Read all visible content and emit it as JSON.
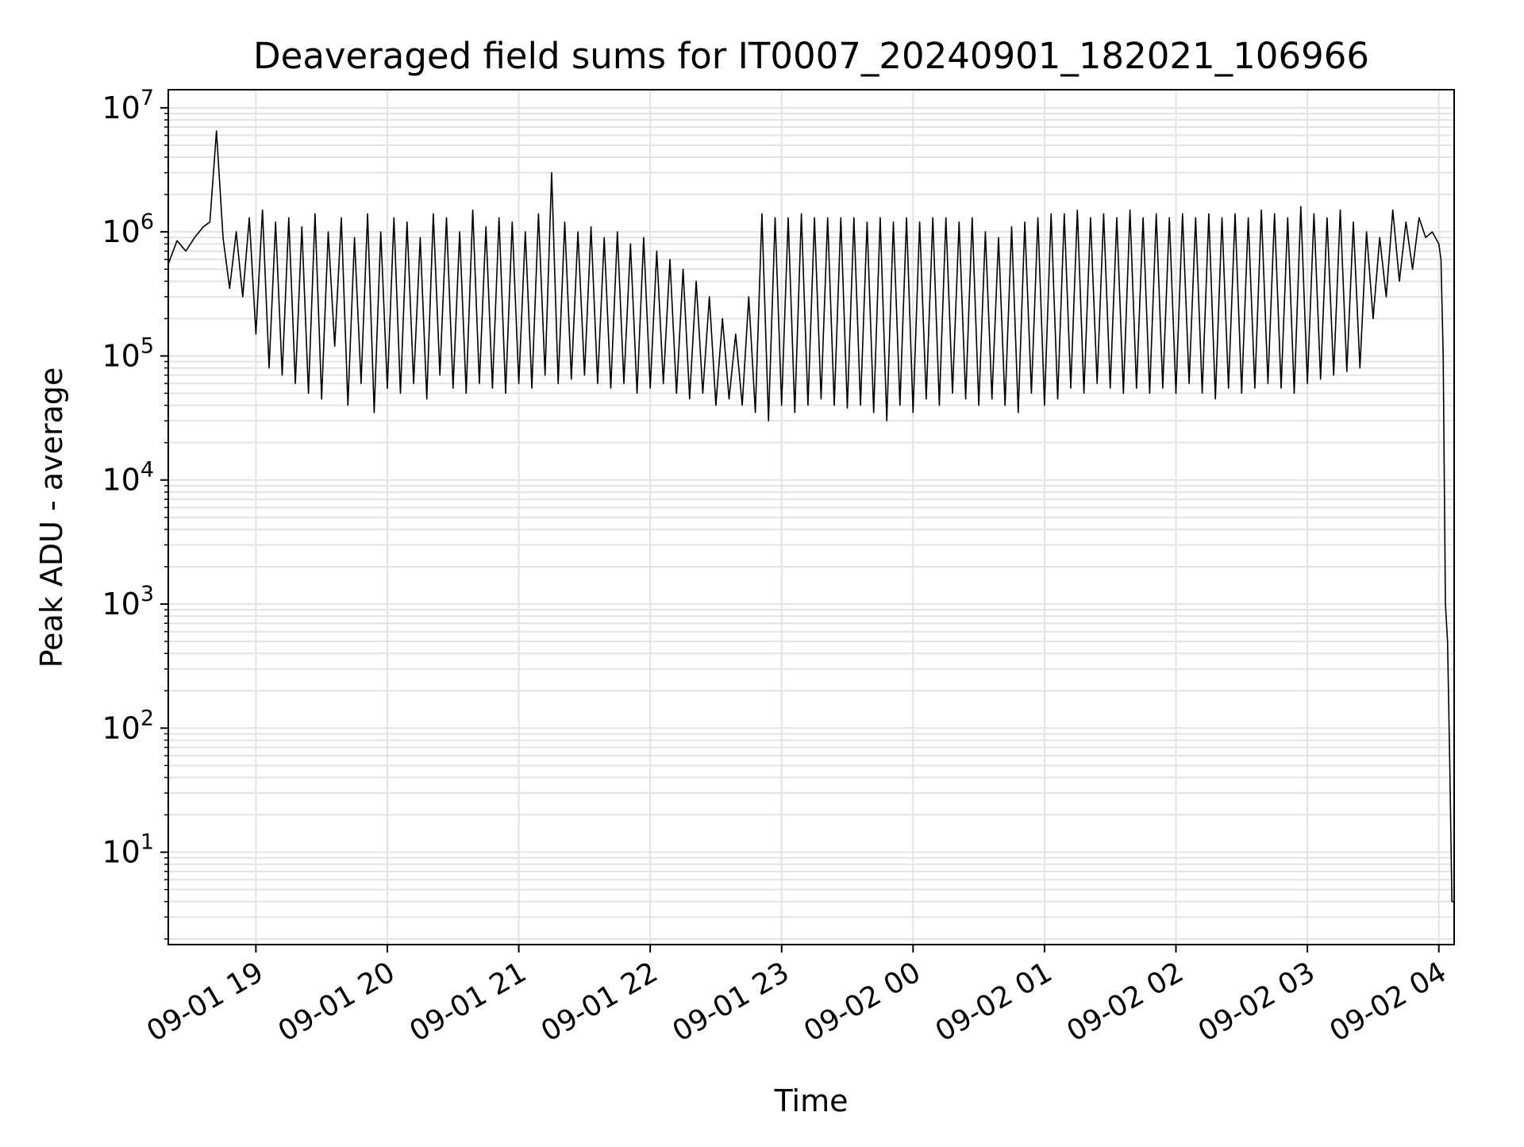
{
  "chart_data": {
    "type": "line",
    "title": "Deaveraged field sums for IT0007_20240901_182021_106966",
    "xlabel": "Time",
    "ylabel": "Peak ADU - average",
    "yscale": "log",
    "ylim": [
      1.8,
      14000000
    ],
    "xlim": [
      "2024-09-01 18:20",
      "2024-09-02 04:07"
    ],
    "grid": true,
    "legend": "none",
    "line_color": "#000000",
    "grid_color": "#e3e3e3",
    "x_ticks": [
      {
        "t": "2024-09-01 19:00",
        "label": "09-01 19"
      },
      {
        "t": "2024-09-01 20:00",
        "label": "09-01 20"
      },
      {
        "t": "2024-09-01 21:00",
        "label": "09-01 21"
      },
      {
        "t": "2024-09-01 22:00",
        "label": "09-01 22"
      },
      {
        "t": "2024-09-01 23:00",
        "label": "09-01 23"
      },
      {
        "t": "2024-09-02 00:00",
        "label": "09-02 00"
      },
      {
        "t": "2024-09-02 01:00",
        "label": "09-02 01"
      },
      {
        "t": "2024-09-02 02:00",
        "label": "09-02 02"
      },
      {
        "t": "2024-09-02 03:00",
        "label": "09-02 03"
      },
      {
        "t": "2024-09-02 04:00",
        "label": "09-02 04"
      }
    ],
    "y_ticks": [
      {
        "value": 10,
        "base": "10",
        "exp": "1"
      },
      {
        "value": 100,
        "base": "10",
        "exp": "2"
      },
      {
        "value": 1000,
        "base": "10",
        "exp": "3"
      },
      {
        "value": 10000,
        "base": "10",
        "exp": "4"
      },
      {
        "value": 100000,
        "base": "10",
        "exp": "5"
      },
      {
        "value": 1000000,
        "base": "10",
        "exp": "6"
      },
      {
        "value": 10000000,
        "base": "10",
        "exp": "7"
      }
    ],
    "series": [
      {
        "x": [
          "2024-09-01 18:20",
          "2024-09-01 18:24",
          "2024-09-01 18:28",
          "2024-09-01 18:32",
          "2024-09-01 18:36",
          "2024-09-01 18:39",
          "2024-09-01 18:42",
          "2024-09-01 18:45",
          "2024-09-01 18:48",
          "2024-09-01 18:51",
          "2024-09-01 18:54",
          "2024-09-01 18:57",
          "2024-09-01 19:00",
          "2024-09-01 19:03",
          "2024-09-01 19:06",
          "2024-09-01 19:09",
          "2024-09-01 19:12",
          "2024-09-01 19:15",
          "2024-09-01 19:18",
          "2024-09-01 19:21",
          "2024-09-01 19:24",
          "2024-09-01 19:27",
          "2024-09-01 19:30",
          "2024-09-01 19:33",
          "2024-09-01 19:36",
          "2024-09-01 19:39",
          "2024-09-01 19:42",
          "2024-09-01 19:45",
          "2024-09-01 19:48",
          "2024-09-01 19:51",
          "2024-09-01 19:54",
          "2024-09-01 19:57",
          "2024-09-01 20:00",
          "2024-09-01 20:03",
          "2024-09-01 20:06",
          "2024-09-01 20:09",
          "2024-09-01 20:12",
          "2024-09-01 20:15",
          "2024-09-01 20:18",
          "2024-09-01 20:21",
          "2024-09-01 20:24",
          "2024-09-01 20:27",
          "2024-09-01 20:30",
          "2024-09-01 20:33",
          "2024-09-01 20:36",
          "2024-09-01 20:39",
          "2024-09-01 20:42",
          "2024-09-01 20:45",
          "2024-09-01 20:48",
          "2024-09-01 20:51",
          "2024-09-01 20:54",
          "2024-09-01 20:57",
          "2024-09-01 21:00",
          "2024-09-01 21:03",
          "2024-09-01 21:06",
          "2024-09-01 21:09",
          "2024-09-01 21:12",
          "2024-09-01 21:15",
          "2024-09-01 21:18",
          "2024-09-01 21:21",
          "2024-09-01 21:24",
          "2024-09-01 21:27",
          "2024-09-01 21:30",
          "2024-09-01 21:33",
          "2024-09-01 21:36",
          "2024-09-01 21:39",
          "2024-09-01 21:42",
          "2024-09-01 21:45",
          "2024-09-01 21:48",
          "2024-09-01 21:51",
          "2024-09-01 21:54",
          "2024-09-01 21:57",
          "2024-09-01 22:00",
          "2024-09-01 22:03",
          "2024-09-01 22:06",
          "2024-09-01 22:09",
          "2024-09-01 22:12",
          "2024-09-01 22:15",
          "2024-09-01 22:18",
          "2024-09-01 22:21",
          "2024-09-01 22:24",
          "2024-09-01 22:27",
          "2024-09-01 22:30",
          "2024-09-01 22:33",
          "2024-09-01 22:36",
          "2024-09-01 22:39",
          "2024-09-01 22:42",
          "2024-09-01 22:45",
          "2024-09-01 22:48",
          "2024-09-01 22:51",
          "2024-09-01 22:54",
          "2024-09-01 22:57",
          "2024-09-01 23:00",
          "2024-09-01 23:03",
          "2024-09-01 23:06",
          "2024-09-01 23:09",
          "2024-09-01 23:12",
          "2024-09-01 23:15",
          "2024-09-01 23:18",
          "2024-09-01 23:21",
          "2024-09-01 23:24",
          "2024-09-01 23:27",
          "2024-09-01 23:30",
          "2024-09-01 23:33",
          "2024-09-01 23:36",
          "2024-09-01 23:39",
          "2024-09-01 23:42",
          "2024-09-01 23:45",
          "2024-09-01 23:48",
          "2024-09-01 23:51",
          "2024-09-01 23:54",
          "2024-09-01 23:57",
          "2024-09-02 00:00",
          "2024-09-02 00:03",
          "2024-09-02 00:06",
          "2024-09-02 00:09",
          "2024-09-02 00:12",
          "2024-09-02 00:15",
          "2024-09-02 00:18",
          "2024-09-02 00:21",
          "2024-09-02 00:24",
          "2024-09-02 00:27",
          "2024-09-02 00:30",
          "2024-09-02 00:33",
          "2024-09-02 00:36",
          "2024-09-02 00:39",
          "2024-09-02 00:42",
          "2024-09-02 00:45",
          "2024-09-02 00:48",
          "2024-09-02 00:51",
          "2024-09-02 00:54",
          "2024-09-02 00:57",
          "2024-09-02 01:00",
          "2024-09-02 01:03",
          "2024-09-02 01:06",
          "2024-09-02 01:09",
          "2024-09-02 01:12",
          "2024-09-02 01:15",
          "2024-09-02 01:18",
          "2024-09-02 01:21",
          "2024-09-02 01:24",
          "2024-09-02 01:27",
          "2024-09-02 01:30",
          "2024-09-02 01:33",
          "2024-09-02 01:36",
          "2024-09-02 01:39",
          "2024-09-02 01:42",
          "2024-09-02 01:45",
          "2024-09-02 01:48",
          "2024-09-02 01:51",
          "2024-09-02 01:54",
          "2024-09-02 01:57",
          "2024-09-02 02:00",
          "2024-09-02 02:03",
          "2024-09-02 02:06",
          "2024-09-02 02:09",
          "2024-09-02 02:12",
          "2024-09-02 02:15",
          "2024-09-02 02:18",
          "2024-09-02 02:21",
          "2024-09-02 02:24",
          "2024-09-02 02:27",
          "2024-09-02 02:30",
          "2024-09-02 02:33",
          "2024-09-02 02:36",
          "2024-09-02 02:39",
          "2024-09-02 02:42",
          "2024-09-02 02:45",
          "2024-09-02 02:48",
          "2024-09-02 02:51",
          "2024-09-02 02:54",
          "2024-09-02 02:57",
          "2024-09-02 03:00",
          "2024-09-02 03:03",
          "2024-09-02 03:06",
          "2024-09-02 03:09",
          "2024-09-02 03:12",
          "2024-09-02 03:15",
          "2024-09-02 03:18",
          "2024-09-02 03:21",
          "2024-09-02 03:24",
          "2024-09-02 03:27",
          "2024-09-02 03:30",
          "2024-09-02 03:33",
          "2024-09-02 03:36",
          "2024-09-02 03:39",
          "2024-09-02 03:42",
          "2024-09-02 03:45",
          "2024-09-02 03:48",
          "2024-09-02 03:51",
          "2024-09-02 03:54",
          "2024-09-02 03:57",
          "2024-09-02 04:00",
          "2024-09-02 04:01",
          "2024-09-02 04:02",
          "2024-09-02 04:03",
          "2024-09-02 04:04",
          "2024-09-02 04:05",
          "2024-09-02 04:06",
          "2024-09-02 04:07"
        ],
        "y": [
          550000,
          850000,
          700000,
          900000,
          1100000,
          1200000,
          6500000,
          900000,
          350000,
          1000000,
          300000,
          1300000,
          150000,
          1500000,
          80000,
          1200000,
          70000,
          1300000,
          60000,
          1100000,
          50000,
          1400000,
          45000,
          1000000,
          120000,
          1300000,
          40000,
          900000,
          60000,
          1400000,
          35000,
          1000000,
          55000,
          1300000,
          50000,
          1200000,
          60000,
          900000,
          45000,
          1400000,
          70000,
          1300000,
          55000,
          1000000,
          50000,
          1500000,
          60000,
          1100000,
          55000,
          1300000,
          50000,
          1200000,
          60000,
          1000000,
          55000,
          1400000,
          70000,
          3000000,
          60000,
          1200000,
          65000,
          1000000,
          70000,
          1100000,
          60000,
          900000,
          55000,
          1000000,
          60000,
          800000,
          50000,
          900000,
          55000,
          700000,
          60000,
          600000,
          50000,
          500000,
          45000,
          400000,
          50000,
          300000,
          40000,
          200000,
          45000,
          150000,
          40000,
          300000,
          35000,
          1400000,
          30000,
          1300000,
          40000,
          1300000,
          35000,
          1400000,
          40000,
          1300000,
          45000,
          1300000,
          40000,
          1300000,
          38000,
          1300000,
          40000,
          1200000,
          35000,
          1300000,
          30000,
          1200000,
          40000,
          1300000,
          35000,
          1200000,
          45000,
          1300000,
          40000,
          1300000,
          50000,
          1200000,
          45000,
          1300000,
          40000,
          1000000,
          45000,
          900000,
          40000,
          1100000,
          35000,
          1200000,
          50000,
          1300000,
          40000,
          1400000,
          45000,
          1400000,
          55000,
          1500000,
          50000,
          1300000,
          60000,
          1400000,
          55000,
          1300000,
          50000,
          1500000,
          55000,
          1300000,
          50000,
          1400000,
          55000,
          1300000,
          50000,
          1400000,
          60000,
          1300000,
          50000,
          1400000,
          45000,
          1300000,
          55000,
          1400000,
          50000,
          1300000,
          55000,
          1500000,
          60000,
          1400000,
          55000,
          1300000,
          50000,
          1600000,
          60000,
          1400000,
          65000,
          1300000,
          70000,
          1500000,
          75000,
          1200000,
          80000,
          1000000,
          200000,
          900000,
          300000,
          1500000,
          400000,
          1200000,
          500000,
          1300000,
          900000,
          1000000,
          800000,
          600000,
          100000,
          1000,
          500,
          50,
          4,
          4
        ]
      }
    ]
  }
}
